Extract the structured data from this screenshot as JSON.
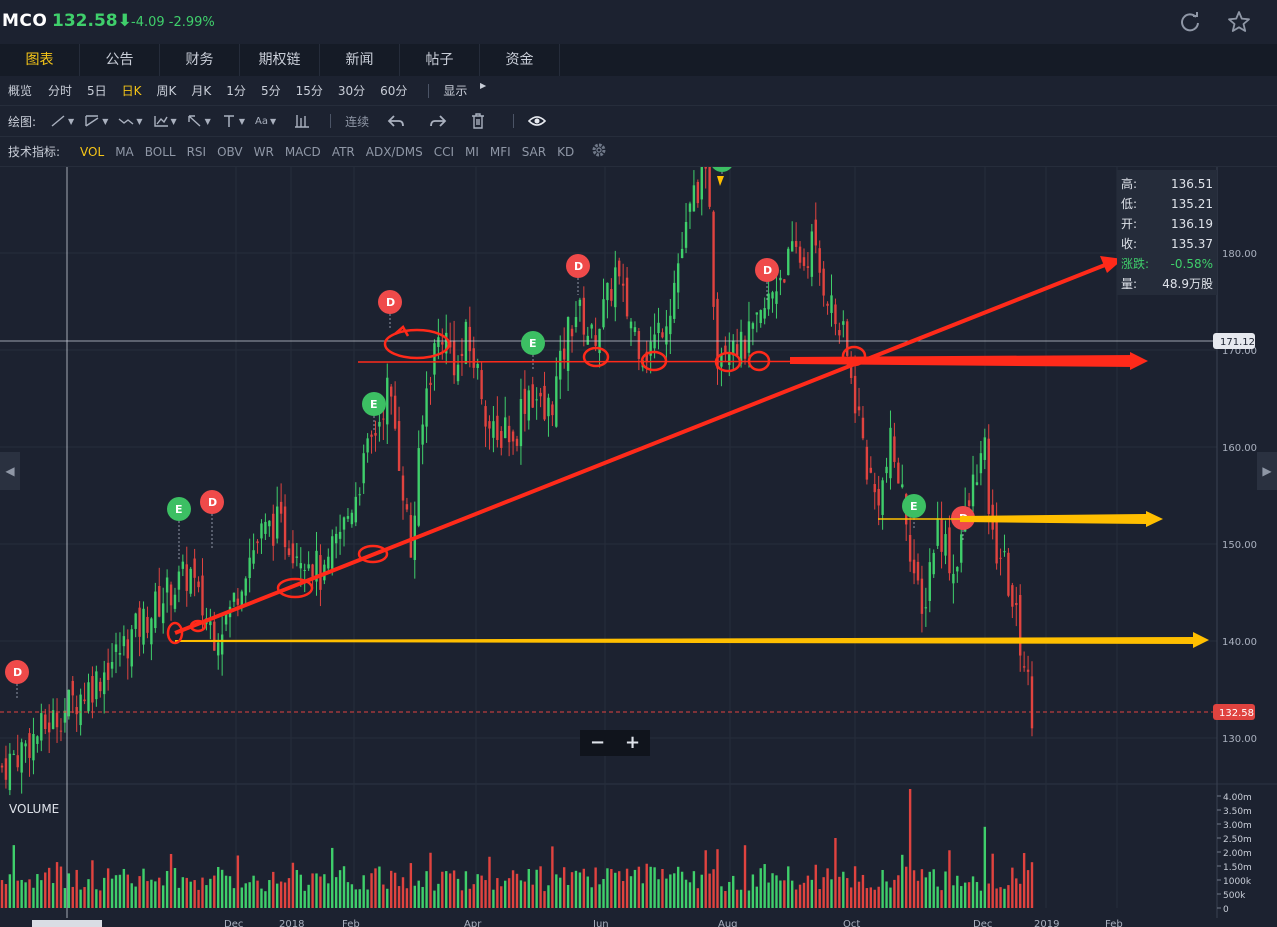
{
  "header": {
    "symbol": "MCO",
    "price": "132.58⬇",
    "change": "-4.09 -2.99%",
    "icons": [
      "refresh-icon",
      "star-icon"
    ]
  },
  "tabs": [
    {
      "label": "图表",
      "active": true
    },
    {
      "label": "公告"
    },
    {
      "label": "财务"
    },
    {
      "label": "期权链"
    },
    {
      "label": "新闻"
    },
    {
      "label": "帖子"
    },
    {
      "label": "资金"
    }
  ],
  "periods": [
    {
      "label": "概览"
    },
    {
      "label": "分时"
    },
    {
      "label": "5日"
    },
    {
      "label": "日K",
      "active": true
    },
    {
      "label": "周K"
    },
    {
      "label": "月K"
    },
    {
      "label": "1分"
    },
    {
      "label": "5分"
    },
    {
      "label": "15分"
    },
    {
      "label": "30分"
    },
    {
      "label": "60分"
    }
  ],
  "display_menu": "显示",
  "drawing": {
    "label": "绘图:",
    "continuous": "连续",
    "tools": [
      "line-tool-icon",
      "trend-tool-icon",
      "fib-tool-icon",
      "pattern-tool-icon",
      "arrow-tool-icon",
      "text-tool-icon",
      "font-tool-icon",
      "measure-icon"
    ],
    "font_tool_text": "Aa",
    "actions": [
      "undo-icon",
      "redo-icon",
      "trash-icon",
      "eye-icon"
    ]
  },
  "indicators": {
    "label": "技术指标:",
    "items": [
      {
        "label": "VOL",
        "active": true
      },
      {
        "label": "MA"
      },
      {
        "label": "BOLL"
      },
      {
        "label": "RSI"
      },
      {
        "label": "OBV"
      },
      {
        "label": "WR"
      },
      {
        "label": "MACD"
      },
      {
        "label": "ATR"
      },
      {
        "label": "ADX/DMS"
      },
      {
        "label": "CCI"
      },
      {
        "label": "MI"
      },
      {
        "label": "MFI"
      },
      {
        "label": "SAR"
      },
      {
        "label": "KD"
      }
    ]
  },
  "ohlc": {
    "rows": [
      {
        "label": "高:",
        "value": "136.51"
      },
      {
        "label": "低:",
        "value": "135.21"
      },
      {
        "label": "开:",
        "value": "136.19"
      },
      {
        "label": "收:",
        "value": "135.37"
      },
      {
        "label": "涨跌:",
        "value": "-0.58%",
        "green": true
      },
      {
        "label": "量:",
        "value": "48.9万股"
      }
    ]
  },
  "zoom": {
    "minus": "−",
    "plus": "+"
  },
  "volume_label": "VOLUME",
  "colors": {
    "up": "#3fcf6b",
    "down": "#e0433f",
    "accent": "#f5c518",
    "annotation_red": "#ff2a1a",
    "annotation_yellow": "#ffbf00",
    "background": "#1c2230"
  },
  "chart_data": {
    "type": "candlestick",
    "price_axis": {
      "ticks": [
        "180.00",
        "170.00",
        "160.00",
        "150.00",
        "140.00",
        "130.00"
      ],
      "range": [
        125,
        188
      ]
    },
    "volume_axis": {
      "ticks": [
        "4.00m",
        "3.50m",
        "3.00m",
        "2.50m",
        "2.00m",
        "1.50m",
        "1000k",
        "500k",
        "0"
      ]
    },
    "x_ticks": [
      "Dec",
      "2018",
      "Feb",
      "Apr",
      "Jun",
      "Aug",
      "Oct",
      "Dec",
      "2019",
      "Feb"
    ],
    "crosshair_price": "171.12",
    "last_price": "132.58",
    "close_path": [
      [
        0,
        127
      ],
      [
        8,
        130
      ],
      [
        16,
        133
      ],
      [
        24,
        136
      ],
      [
        30,
        139
      ],
      [
        36,
        142
      ],
      [
        42,
        145
      ],
      [
        48,
        147
      ],
      [
        50,
        144
      ],
      [
        54,
        141
      ],
      [
        58,
        143
      ],
      [
        62,
        148
      ],
      [
        66,
        151
      ],
      [
        70,
        152
      ],
      [
        74,
        150
      ],
      [
        78,
        149
      ],
      [
        82,
        146
      ],
      [
        84,
        149
      ],
      [
        88,
        153
      ],
      [
        92,
        158
      ],
      [
        96,
        163
      ],
      [
        98,
        166
      ],
      [
        100,
        162
      ],
      [
        102,
        156
      ],
      [
        104,
        149
      ],
      [
        106,
        158
      ],
      [
        108,
        166
      ],
      [
        110,
        170
      ],
      [
        112,
        172
      ],
      [
        114,
        170
      ],
      [
        116,
        168
      ],
      [
        118,
        171
      ],
      [
        120,
        169
      ],
      [
        122,
        166
      ],
      [
        124,
        162
      ],
      [
        126,
        160
      ],
      [
        128,
        163
      ],
      [
        130,
        160
      ],
      [
        132,
        164
      ],
      [
        134,
        166
      ],
      [
        136,
        165
      ],
      [
        138,
        163
      ],
      [
        140,
        165
      ],
      [
        142,
        168
      ],
      [
        144,
        172
      ],
      [
        146,
        174
      ],
      [
        148,
        173
      ],
      [
        150,
        171
      ],
      [
        152,
        173
      ],
      [
        154,
        175
      ],
      [
        156,
        178
      ],
      [
        158,
        175
      ],
      [
        160,
        173
      ],
      [
        162,
        171
      ],
      [
        164,
        170
      ],
      [
        166,
        171
      ],
      [
        168,
        173
      ],
      [
        170,
        175
      ],
      [
        172,
        179
      ],
      [
        174,
        182
      ],
      [
        176,
        186
      ],
      [
        178,
        188
      ],
      [
        180,
        186
      ],
      [
        181,
        176
      ],
      [
        182,
        170
      ],
      [
        184,
        171
      ],
      [
        186,
        172
      ],
      [
        188,
        170
      ],
      [
        190,
        171
      ],
      [
        192,
        172
      ],
      [
        194,
        174
      ],
      [
        196,
        176
      ],
      [
        198,
        178
      ],
      [
        200,
        179
      ],
      [
        202,
        180
      ],
      [
        204,
        179
      ],
      [
        206,
        181
      ],
      [
        208,
        178
      ],
      [
        210,
        176
      ],
      [
        212,
        173
      ],
      [
        214,
        171
      ],
      [
        216,
        167
      ],
      [
        218,
        163
      ],
      [
        220,
        158
      ],
      [
        222,
        155
      ],
      [
        224,
        156
      ],
      [
        226,
        160
      ],
      [
        228,
        157
      ],
      [
        230,
        153
      ],
      [
        232,
        147
      ],
      [
        234,
        142
      ],
      [
        236,
        148
      ],
      [
        238,
        152
      ],
      [
        240,
        150
      ],
      [
        242,
        147
      ],
      [
        244,
        151
      ],
      [
        246,
        154
      ],
      [
        248,
        158
      ],
      [
        250,
        159
      ],
      [
        251,
        154
      ],
      [
        252,
        150
      ],
      [
        254,
        149
      ],
      [
        256,
        146
      ],
      [
        258,
        142
      ],
      [
        260,
        138
      ],
      [
        262,
        133
      ]
    ],
    "markers": [
      "D",
      "E",
      "D",
      "E",
      "D",
      "E",
      "D",
      "D",
      "E",
      "D",
      "E"
    ]
  }
}
